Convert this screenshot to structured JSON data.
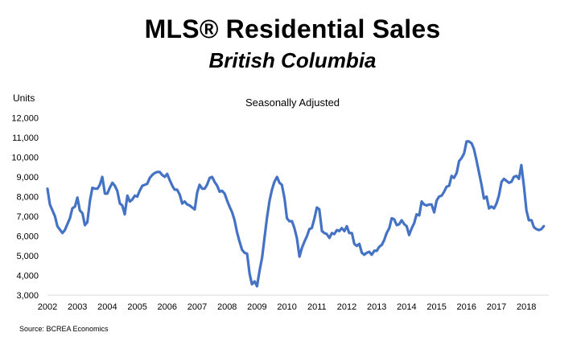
{
  "chart_data": {
    "type": "line",
    "title": "MLS® Residential Sales",
    "subtitle": "British Columbia",
    "annotation": "Seasonally Adjusted",
    "ylabel": "Units",
    "xlabel": "",
    "source": "Source: BCREA Economics",
    "ylim": [
      3000,
      12000
    ],
    "y_ticks": [
      "3,000",
      "4,000",
      "5,000",
      "6,000",
      "7,000",
      "8,000",
      "9,000",
      "10,000",
      "11,000",
      "12,000"
    ],
    "y_tick_values": [
      3000,
      4000,
      5000,
      6000,
      7000,
      8000,
      9000,
      10000,
      11000,
      12000
    ],
    "x_ticks": [
      "2002",
      "2003",
      "2004",
      "2005",
      "2006",
      "2007",
      "2008",
      "2009",
      "2010",
      "2011",
      "2012",
      "2013",
      "2014",
      "2015",
      "2016",
      "2017",
      "2018"
    ],
    "x_tick_values": [
      2002,
      2003,
      2004,
      2005,
      2006,
      2007,
      2008,
      2009,
      2010,
      2011,
      2012,
      2013,
      2014,
      2015,
      2016,
      2017,
      2018
    ],
    "xlim": [
      2002,
      2018.75
    ],
    "grid": false,
    "line_color": "#4472C4",
    "series": [
      {
        "name": "",
        "points": [
          [
            2002.0,
            8400
          ],
          [
            2002.08,
            7600
          ],
          [
            2002.25,
            7000
          ],
          [
            2002.33,
            6500
          ],
          [
            2002.5,
            6150
          ],
          [
            2002.58,
            6300
          ],
          [
            2002.75,
            6900
          ],
          [
            2002.83,
            7400
          ],
          [
            2002.92,
            7500
          ],
          [
            2003.0,
            7950
          ],
          [
            2003.08,
            7300
          ],
          [
            2003.17,
            7150
          ],
          [
            2003.25,
            6550
          ],
          [
            2003.33,
            6700
          ],
          [
            2003.42,
            7800
          ],
          [
            2003.5,
            8450
          ],
          [
            2003.58,
            8400
          ],
          [
            2003.67,
            8400
          ],
          [
            2003.75,
            8600
          ],
          [
            2003.83,
            9000
          ],
          [
            2003.92,
            8150
          ],
          [
            2004.0,
            8150
          ],
          [
            2004.08,
            8450
          ],
          [
            2004.17,
            8700
          ],
          [
            2004.25,
            8550
          ],
          [
            2004.33,
            8300
          ],
          [
            2004.42,
            7650
          ],
          [
            2004.5,
            7550
          ],
          [
            2004.58,
            7100
          ],
          [
            2004.67,
            8050
          ],
          [
            2004.75,
            7750
          ],
          [
            2004.83,
            7850
          ],
          [
            2004.92,
            8050
          ],
          [
            2005.0,
            8000
          ],
          [
            2005.08,
            8300
          ],
          [
            2005.17,
            8550
          ],
          [
            2005.25,
            8600
          ],
          [
            2005.33,
            8650
          ],
          [
            2005.42,
            8950
          ],
          [
            2005.5,
            9100
          ],
          [
            2005.58,
            9200
          ],
          [
            2005.67,
            9250
          ],
          [
            2005.75,
            9250
          ],
          [
            2005.83,
            9100
          ],
          [
            2005.92,
            9000
          ],
          [
            2006.0,
            9150
          ],
          [
            2006.08,
            8850
          ],
          [
            2006.17,
            8550
          ],
          [
            2006.25,
            8350
          ],
          [
            2006.33,
            8350
          ],
          [
            2006.42,
            8100
          ],
          [
            2006.5,
            7650
          ],
          [
            2006.58,
            7750
          ],
          [
            2006.67,
            7600
          ],
          [
            2006.75,
            7550
          ],
          [
            2006.83,
            7450
          ],
          [
            2006.92,
            7350
          ],
          [
            2007.0,
            8200
          ],
          [
            2007.08,
            8600
          ],
          [
            2007.17,
            8400
          ],
          [
            2007.25,
            8400
          ],
          [
            2007.33,
            8600
          ],
          [
            2007.42,
            8950
          ],
          [
            2007.5,
            9000
          ],
          [
            2007.58,
            8750
          ],
          [
            2007.67,
            8550
          ],
          [
            2007.75,
            8250
          ],
          [
            2007.83,
            8300
          ],
          [
            2007.92,
            8150
          ],
          [
            2008.0,
            7800
          ],
          [
            2008.08,
            7500
          ],
          [
            2008.17,
            7200
          ],
          [
            2008.25,
            6800
          ],
          [
            2008.33,
            6200
          ],
          [
            2008.42,
            5700
          ],
          [
            2008.5,
            5300
          ],
          [
            2008.58,
            5150
          ],
          [
            2008.67,
            5100
          ],
          [
            2008.75,
            4100
          ],
          [
            2008.83,
            3550
          ],
          [
            2008.92,
            3700
          ],
          [
            2009.0,
            3450
          ],
          [
            2009.08,
            4200
          ],
          [
            2009.17,
            4900
          ],
          [
            2009.25,
            5900
          ],
          [
            2009.33,
            6900
          ],
          [
            2009.42,
            7800
          ],
          [
            2009.5,
            8350
          ],
          [
            2009.58,
            8750
          ],
          [
            2009.67,
            9000
          ],
          [
            2009.75,
            8700
          ],
          [
            2009.83,
            8600
          ],
          [
            2009.92,
            7900
          ],
          [
            2010.0,
            6900
          ],
          [
            2010.08,
            6750
          ],
          [
            2010.17,
            6750
          ],
          [
            2010.25,
            6400
          ],
          [
            2010.33,
            5900
          ],
          [
            2010.42,
            4950
          ],
          [
            2010.5,
            5400
          ],
          [
            2010.58,
            5700
          ],
          [
            2010.67,
            6000
          ],
          [
            2010.75,
            6350
          ],
          [
            2010.83,
            6400
          ],
          [
            2010.92,
            6900
          ],
          [
            2011.0,
            7450
          ],
          [
            2011.08,
            7350
          ],
          [
            2011.17,
            6250
          ],
          [
            2011.25,
            6150
          ],
          [
            2011.33,
            6100
          ],
          [
            2011.42,
            5900
          ],
          [
            2011.5,
            6150
          ],
          [
            2011.58,
            6100
          ],
          [
            2011.67,
            6300
          ],
          [
            2011.75,
            6250
          ],
          [
            2011.83,
            6400
          ],
          [
            2011.92,
            6250
          ],
          [
            2012.0,
            6500
          ],
          [
            2012.08,
            6150
          ],
          [
            2012.17,
            6150
          ],
          [
            2012.25,
            5600
          ],
          [
            2012.33,
            5500
          ],
          [
            2012.42,
            5600
          ],
          [
            2012.5,
            5150
          ],
          [
            2012.58,
            5050
          ],
          [
            2012.67,
            5150
          ],
          [
            2012.75,
            5200
          ],
          [
            2012.83,
            5050
          ],
          [
            2012.92,
            5250
          ],
          [
            2013.0,
            5250
          ],
          [
            2013.08,
            5450
          ],
          [
            2013.17,
            5550
          ],
          [
            2013.25,
            5800
          ],
          [
            2013.33,
            6150
          ],
          [
            2013.42,
            6400
          ],
          [
            2013.5,
            6900
          ],
          [
            2013.58,
            6850
          ],
          [
            2013.67,
            6550
          ],
          [
            2013.75,
            6600
          ],
          [
            2013.83,
            6800
          ],
          [
            2013.92,
            6600
          ],
          [
            2014.0,
            6500
          ],
          [
            2014.08,
            6050
          ],
          [
            2014.17,
            6400
          ],
          [
            2014.25,
            6650
          ],
          [
            2014.33,
            7100
          ],
          [
            2014.42,
            7050
          ],
          [
            2014.5,
            7750
          ],
          [
            2014.58,
            7600
          ],
          [
            2014.67,
            7550
          ],
          [
            2014.75,
            7600
          ],
          [
            2014.83,
            7600
          ],
          [
            2014.92,
            7200
          ],
          [
            2015.0,
            7800
          ],
          [
            2015.08,
            8000
          ],
          [
            2015.17,
            8050
          ],
          [
            2015.25,
            8250
          ],
          [
            2015.33,
            8500
          ],
          [
            2015.42,
            8550
          ],
          [
            2015.5,
            9050
          ],
          [
            2015.58,
            8950
          ],
          [
            2015.67,
            9200
          ],
          [
            2015.75,
            9800
          ],
          [
            2015.83,
            9950
          ],
          [
            2015.92,
            10200
          ],
          [
            2016.0,
            10800
          ],
          [
            2016.08,
            10800
          ],
          [
            2016.17,
            10700
          ],
          [
            2016.25,
            10400
          ],
          [
            2016.33,
            9850
          ],
          [
            2016.42,
            9200
          ],
          [
            2016.5,
            8600
          ],
          [
            2016.58,
            7900
          ],
          [
            2016.67,
            8000
          ],
          [
            2016.75,
            7400
          ],
          [
            2016.83,
            7500
          ],
          [
            2016.92,
            7400
          ],
          [
            2017.0,
            7650
          ],
          [
            2017.08,
            8050
          ],
          [
            2017.17,
            8750
          ],
          [
            2017.25,
            8900
          ],
          [
            2017.33,
            8800
          ],
          [
            2017.42,
            8700
          ],
          [
            2017.5,
            8750
          ],
          [
            2017.58,
            9000
          ],
          [
            2017.67,
            9050
          ],
          [
            2017.75,
            8900
          ],
          [
            2017.83,
            9600
          ],
          [
            2017.92,
            8500
          ],
          [
            2018.0,
            7300
          ],
          [
            2018.08,
            6800
          ],
          [
            2018.17,
            6800
          ],
          [
            2018.25,
            6450
          ],
          [
            2018.33,
            6350
          ],
          [
            2018.42,
            6300
          ],
          [
            2018.5,
            6350
          ],
          [
            2018.58,
            6500
          ]
        ]
      }
    ]
  }
}
